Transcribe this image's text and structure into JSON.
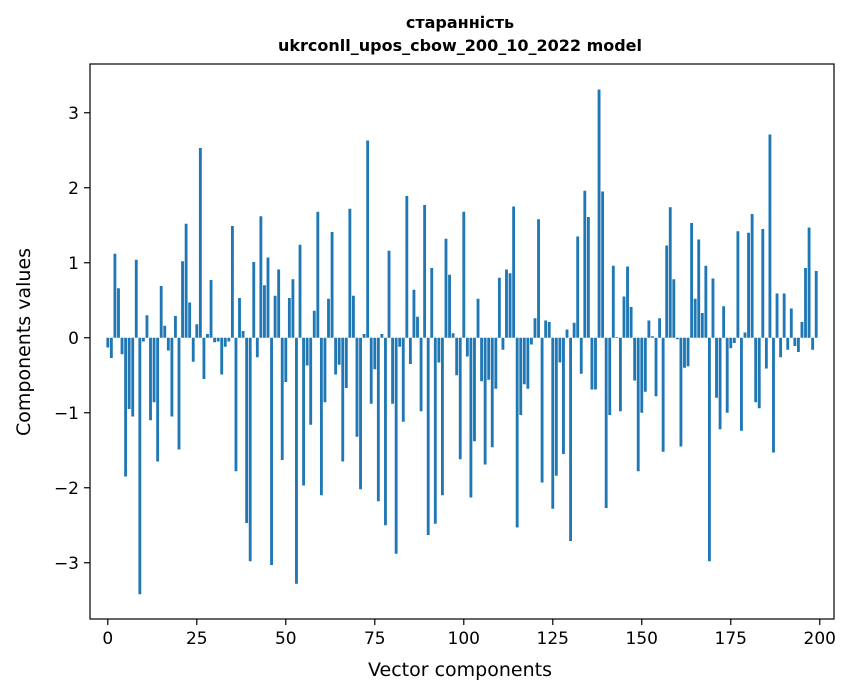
{
  "chart_data": {
    "type": "bar",
    "title": "старанність",
    "subtitle": "ukrconll_upos_cbow_200_10_2022 model",
    "xlabel": "Vector components",
    "ylabel": "Components values",
    "xlim": [
      -5,
      204
    ],
    "ylim": [
      -3.75,
      3.65
    ],
    "xticks": [
      0,
      25,
      50,
      75,
      100,
      125,
      150,
      175,
      200
    ],
    "xtick_labels": [
      "0",
      "25",
      "50",
      "75",
      "100",
      "125",
      "150",
      "175",
      "200"
    ],
    "yticks": [
      -3,
      -2,
      -1,
      0,
      1,
      2,
      3
    ],
    "ytick_labels": [
      "−3",
      "−2",
      "−1",
      "0",
      "1",
      "2",
      "3"
    ],
    "bar_color": "#1f77b4",
    "grid": false,
    "x": [
      0,
      1,
      2,
      3,
      4,
      5,
      6,
      7,
      8,
      9,
      10,
      11,
      12,
      13,
      14,
      15,
      16,
      17,
      18,
      19,
      20,
      21,
      22,
      23,
      24,
      25,
      26,
      27,
      28,
      29,
      30,
      31,
      32,
      33,
      34,
      35,
      36,
      37,
      38,
      39,
      40,
      41,
      42,
      43,
      44,
      45,
      46,
      47,
      48,
      49,
      50,
      51,
      52,
      53,
      54,
      55,
      56,
      57,
      58,
      59,
      60,
      61,
      62,
      63,
      64,
      65,
      66,
      67,
      68,
      69,
      70,
      71,
      72,
      73,
      74,
      75,
      76,
      77,
      78,
      79,
      80,
      81,
      82,
      83,
      84,
      85,
      86,
      87,
      88,
      89,
      90,
      91,
      92,
      93,
      94,
      95,
      96,
      97,
      98,
      99,
      100,
      101,
      102,
      103,
      104,
      105,
      106,
      107,
      108,
      109,
      110,
      111,
      112,
      113,
      114,
      115,
      116,
      117,
      118,
      119,
      120,
      121,
      122,
      123,
      124,
      125,
      126,
      127,
      128,
      129,
      130,
      131,
      132,
      133,
      134,
      135,
      136,
      137,
      138,
      139,
      140,
      141,
      142,
      143,
      144,
      145,
      146,
      147,
      148,
      149,
      150,
      151,
      152,
      153,
      154,
      155,
      156,
      157,
      158,
      159,
      160,
      161,
      162,
      163,
      164,
      165,
      166,
      167,
      168,
      169,
      170,
      171,
      172,
      173,
      174,
      175,
      176,
      177,
      178,
      179,
      180,
      181,
      182,
      183,
      184,
      185,
      186,
      187,
      188,
      189,
      190,
      191,
      192,
      193,
      194,
      195,
      196,
      197,
      198,
      199
    ],
    "values": [
      -0.13,
      -0.27,
      1.12,
      0.66,
      -0.22,
      -1.85,
      -0.95,
      -1.05,
      1.04,
      -3.42,
      -0.05,
      0.3,
      -1.1,
      -0.86,
      -1.65,
      0.69,
      0.16,
      -0.17,
      -1.05,
      0.29,
      -1.49,
      1.02,
      1.52,
      0.47,
      -0.32,
      0.18,
      2.53,
      -0.55,
      0.05,
      0.77,
      -0.06,
      -0.05,
      -0.49,
      -0.12,
      -0.05,
      1.49,
      -1.78,
      0.53,
      0.09,
      -2.47,
      -2.98,
      1.01,
      -0.26,
      1.62,
      0.7,
      1.07,
      -3.03,
      0.56,
      0.91,
      -1.63,
      -0.59,
      0.53,
      0.78,
      -3.28,
      1.24,
      -1.97,
      -0.37,
      -1.16,
      0.36,
      1.68,
      -2.1,
      -0.86,
      0.52,
      1.41,
      -0.49,
      -0.36,
      -1.65,
      -0.67,
      1.72,
      0.56,
      -1.32,
      -2.02,
      0.05,
      2.63,
      -0.88,
      -0.42,
      -2.18,
      0.05,
      -2.5,
      1.16,
      -0.88,
      -2.88,
      -0.12,
      -1.12,
      1.89,
      -0.35,
      0.64,
      0.28,
      -0.98,
      1.77,
      -2.63,
      0.93,
      -2.48,
      -0.33,
      -2.1,
      1.32,
      0.84,
      0.06,
      -0.5,
      -1.62,
      1.68,
      -0.25,
      -2.13,
      -1.38,
      0.52,
      -0.58,
      -1.69,
      -0.56,
      -1.46,
      -0.68,
      0.8,
      -0.16,
      0.91,
      0.86,
      1.75,
      -2.53,
      -1.03,
      -0.62,
      -0.68,
      -0.09,
      0.26,
      1.58,
      -1.93,
      0.23,
      0.21,
      -2.28,
      -1.84,
      -0.33,
      -1.55,
      0.11,
      -2.71,
      0.2,
      1.35,
      -0.48,
      1.96,
      1.61,
      -0.69,
      -0.69,
      3.31,
      1.95,
      -2.27,
      -1.03,
      0.96,
      0.01,
      -0.98,
      0.55,
      0.95,
      0.41,
      -0.57,
      -1.78,
      -1.0,
      -0.72,
      0.23,
      0.02,
      -0.78,
      0.26,
      -1.52,
      1.23,
      1.74,
      0.78,
      -0.02,
      -1.45,
      -0.4,
      -0.38,
      1.53,
      0.52,
      1.31,
      0.33,
      0.96,
      -2.98,
      0.79,
      -0.8,
      -1.22,
      0.42,
      -1.0,
      -0.14,
      -0.07,
      1.42,
      -1.24,
      0.07,
      1.4,
      1.65,
      -0.86,
      -0.94,
      1.45,
      -0.41,
      2.71,
      -1.53,
      0.59,
      -0.26,
      0.59,
      -0.16,
      0.39,
      -0.11,
      -0.19,
      0.21,
      0.93,
      1.47,
      -0.16,
      0.89
    ]
  }
}
